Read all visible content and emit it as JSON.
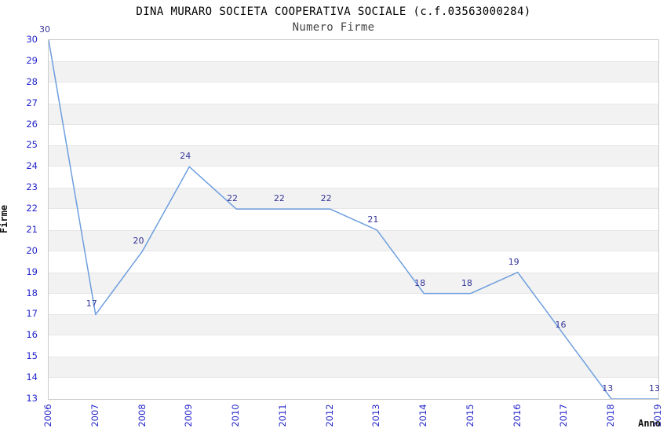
{
  "chart_data": {
    "type": "line",
    "title": "DINA MURARO SOCIETA COOPERATIVA SOCIALE (c.f.03563000284)",
    "subtitle": "Numero Firme",
    "xlabel": "Anno",
    "ylabel": "Firme",
    "categories": [
      "2006",
      "2007",
      "2008",
      "2009",
      "2010",
      "2011",
      "2012",
      "2013",
      "2014",
      "2015",
      "2016",
      "2017",
      "2018",
      "2019"
    ],
    "values": [
      30,
      17,
      20,
      24,
      22,
      22,
      22,
      21,
      18,
      18,
      19,
      16,
      13,
      13
    ],
    "ylim": [
      13,
      30
    ],
    "ytick_step": 1,
    "legend": "none",
    "grid": "alternating horizontal bands, no vertical gridlines",
    "point_labels_visible": true,
    "colors": {
      "line": "#6d9ede",
      "tick_label": "#2424cc",
      "data_label": "#333399",
      "band_fill": "#f2f2f2",
      "band_edge": "#e6e6e6",
      "plot_border": "#cccccc",
      "title": "#000000",
      "subtitle": "#444444",
      "axis_label": "#111111"
    }
  }
}
